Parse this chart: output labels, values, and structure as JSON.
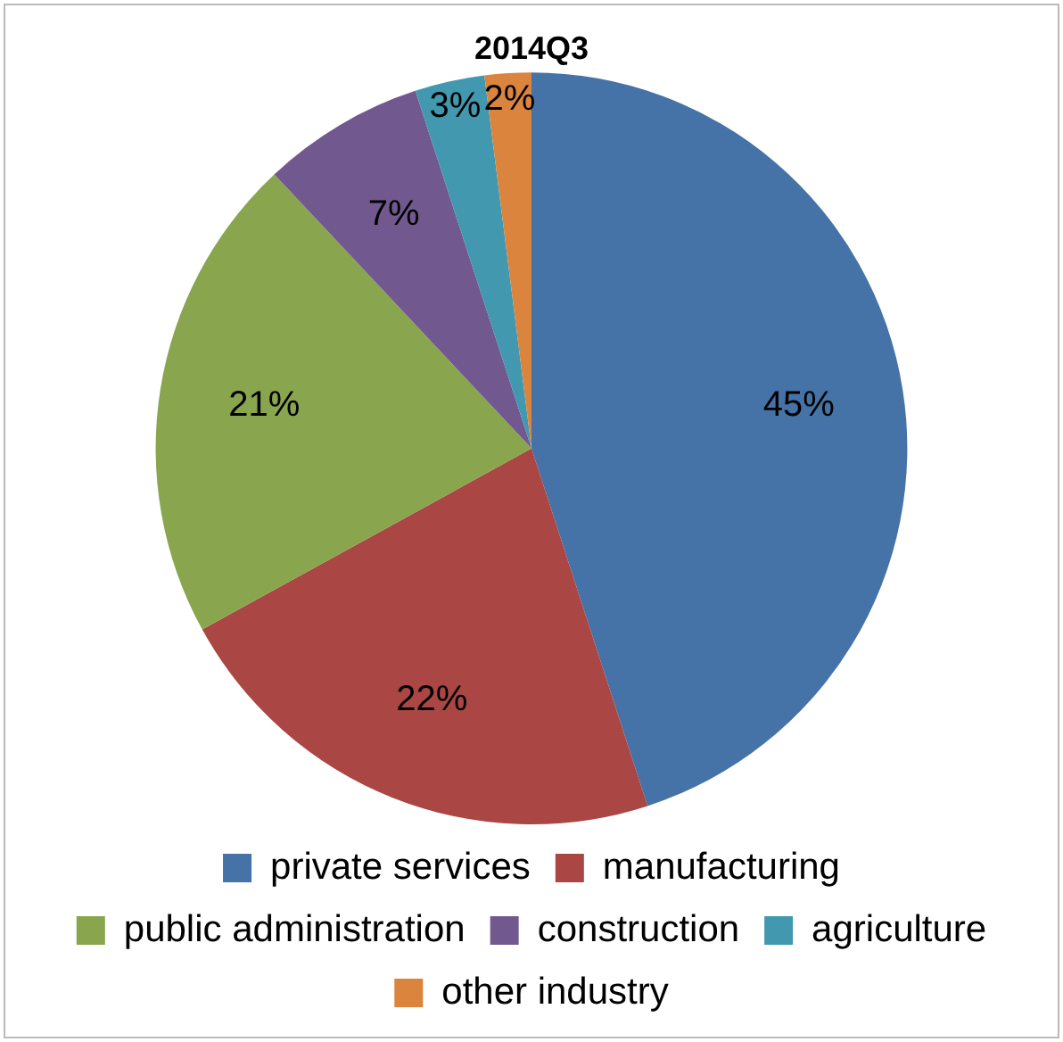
{
  "chart_data": {
    "type": "pie",
    "title": "2014Q3",
    "categories": [
      "private services",
      "manufacturing",
      "public administration",
      "construction",
      "agriculture",
      "other industry"
    ],
    "values": [
      45,
      22,
      21,
      7,
      3,
      2
    ],
    "colors": [
      "#4572a7",
      "#aa4643",
      "#89a54e",
      "#71588f",
      "#4198af",
      "#db843d"
    ],
    "value_labels": [
      "45%",
      "22%",
      "21%",
      "7%",
      "3%",
      "2%"
    ],
    "legend": "bottom"
  }
}
